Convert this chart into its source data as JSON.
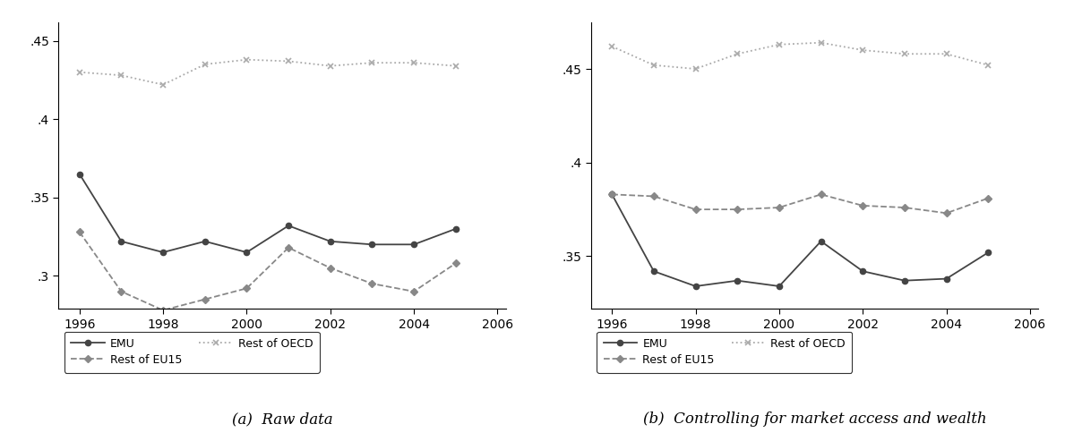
{
  "years": [
    1996,
    1997,
    1998,
    1999,
    2000,
    2001,
    2002,
    2003,
    2004,
    2005
  ],
  "panel_a": {
    "emu": [
      0.365,
      0.322,
      0.315,
      0.322,
      0.315,
      0.332,
      0.322,
      0.32,
      0.32,
      0.33
    ],
    "rest_eu15": [
      0.328,
      0.29,
      0.278,
      0.285,
      0.292,
      0.318,
      0.305,
      0.295,
      0.29,
      0.308
    ],
    "rest_oecd": [
      0.43,
      0.428,
      0.422,
      0.435,
      0.438,
      0.437,
      0.434,
      0.436,
      0.436,
      0.434
    ]
  },
  "panel_b": {
    "emu": [
      0.383,
      0.342,
      0.334,
      0.337,
      0.334,
      0.358,
      0.342,
      0.337,
      0.338,
      0.352
    ],
    "rest_eu15": [
      0.383,
      0.382,
      0.375,
      0.375,
      0.376,
      0.383,
      0.377,
      0.376,
      0.373,
      0.381
    ],
    "rest_oecd": [
      0.462,
      0.452,
      0.45,
      0.458,
      0.463,
      0.464,
      0.46,
      0.458,
      0.458,
      0.452
    ]
  },
  "line_color_emu": "#444444",
  "line_color_eu15": "#888888",
  "line_color_oecd": "#aaaaaa",
  "title_a": "(a)  Raw data",
  "title_b": "(b)  Controlling for market access and wealth",
  "xlim": [
    1995.5,
    2006.2
  ],
  "ylim_a": [
    0.279,
    0.462
  ],
  "ylim_b": [
    0.322,
    0.475
  ],
  "yticks_a": [
    0.3,
    0.35,
    0.4,
    0.45
  ],
  "yticks_b": [
    0.35,
    0.4,
    0.45
  ],
  "ytick_labels_a": [
    ".3",
    ".35",
    ".4",
    ".45"
  ],
  "ytick_labels_b": [
    ".35",
    ".4",
    ".45"
  ],
  "xticks": [
    1996,
    1998,
    2000,
    2002,
    2004,
    2006
  ],
  "legend_labels": [
    "EMU",
    "Rest of EU15",
    "Rest of OECD"
  ]
}
